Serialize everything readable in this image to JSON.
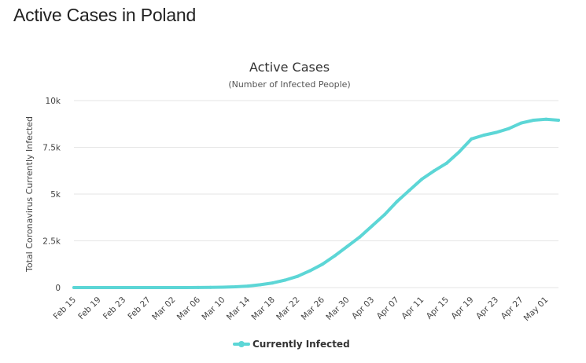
{
  "page": {
    "heading": "Active Cases in Poland"
  },
  "colors": {
    "series": "#5cd6d6",
    "grid": "#e6e6e6",
    "text": "#333333"
  },
  "chart_data": {
    "type": "line",
    "title": "Active Cases",
    "subtitle": "(Number of Infected People)",
    "xlabel": "",
    "ylabel": "Total Coronavirus Currently Infected",
    "x_ticks": [
      "Feb 15",
      "Feb 19",
      "Feb 23",
      "Feb 27",
      "Mar 02",
      "Mar 06",
      "Mar 10",
      "Mar 14",
      "Mar 18",
      "Mar 22",
      "Mar 26",
      "Mar 30",
      "Apr 03",
      "Apr 07",
      "Apr 11",
      "Apr 15",
      "Apr 19",
      "Apr 23",
      "Apr 27",
      "May 01"
    ],
    "y_ticks": [
      "0",
      "2.5k",
      "5k",
      "7.5k",
      "10k"
    ],
    "ylim": [
      0,
      10000
    ],
    "grid": true,
    "legend_position": "bottom-center",
    "series": [
      {
        "name": "Currently Infected",
        "color": "#5cd6d6",
        "x": [
          "Feb 15",
          "Feb 17",
          "Feb 19",
          "Feb 21",
          "Feb 23",
          "Feb 25",
          "Feb 27",
          "Feb 29",
          "Mar 02",
          "Mar 04",
          "Mar 06",
          "Mar 08",
          "Mar 10",
          "Mar 12",
          "Mar 14",
          "Mar 16",
          "Mar 18",
          "Mar 20",
          "Mar 22",
          "Mar 24",
          "Mar 26",
          "Mar 28",
          "Mar 30",
          "Apr 01",
          "Apr 03",
          "Apr 05",
          "Apr 07",
          "Apr 09",
          "Apr 11",
          "Apr 13",
          "Apr 15",
          "Apr 17",
          "Apr 19",
          "Apr 21",
          "Apr 23",
          "Apr 25",
          "Apr 27",
          "Apr 29",
          "May 01",
          "May 03"
        ],
        "values": [
          0,
          0,
          0,
          0,
          0,
          0,
          0,
          0,
          0,
          0,
          5,
          10,
          20,
          40,
          80,
          150,
          250,
          400,
          600,
          900,
          1250,
          1700,
          2200,
          2700,
          3300,
          3900,
          4600,
          5200,
          5800,
          6250,
          6650,
          7250,
          7950,
          8150,
          8300,
          8500,
          8800,
          8950,
          9000,
          8950
        ]
      }
    ]
  }
}
